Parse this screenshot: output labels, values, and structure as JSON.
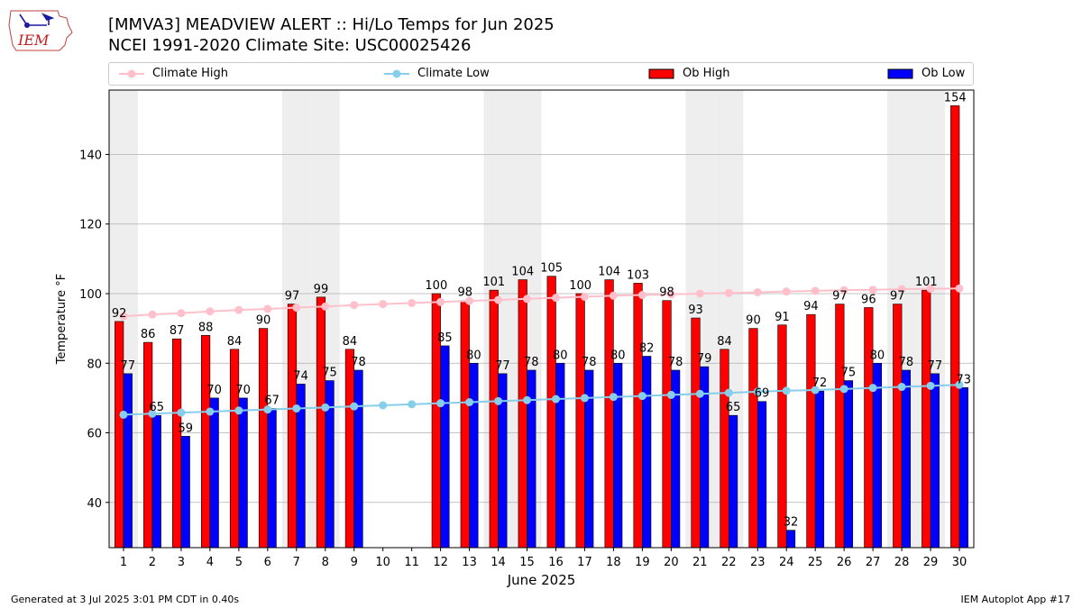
{
  "title_line1": "[MMVA3] MEADVIEW ALERT :: Hi/Lo Temps for Jun 2025",
  "title_line2": "NCEI 1991-2020 Climate Site: USC00025426",
  "logo_text": "IEM",
  "footer_left": "Generated at 3 Jul 2025 3:01 PM CDT in 0.40s",
  "footer_right": "IEM Autoplot App #17",
  "colors": {
    "ob_high": "#ff0000",
    "ob_low": "#0000ff",
    "climate_high": "#ffc0cb",
    "climate_low": "#87ceeb",
    "weekend_shade": "#eeeeee",
    "grid": "#b0b0b0"
  },
  "legend": [
    {
      "label": "Climate High",
      "icon": "line-marker"
    },
    {
      "label": "Climate Low",
      "icon": "line-marker"
    },
    {
      "label": "Ob High",
      "icon": "bar-patch"
    },
    {
      "label": "Ob Low",
      "icon": "bar-patch"
    }
  ],
  "chart_data": {
    "type": "bar",
    "xlabel": "June 2025",
    "ylabel": "Temperature °F",
    "ylim": [
      27,
      158.5
    ],
    "yticks": [
      40,
      60,
      80,
      100,
      120,
      140
    ],
    "grid": "horizontal",
    "days": [
      1,
      2,
      3,
      4,
      5,
      6,
      7,
      8,
      9,
      10,
      11,
      12,
      13,
      14,
      15,
      16,
      17,
      18,
      19,
      20,
      21,
      22,
      23,
      24,
      25,
      26,
      27,
      28,
      29,
      30
    ],
    "shaded_days": [
      1,
      7,
      8,
      14,
      15,
      21,
      22,
      28,
      29
    ],
    "series": [
      {
        "name": "Ob High",
        "kind": "bar",
        "values": [
          92,
          86,
          87,
          88,
          84,
          90,
          97,
          99,
          84,
          null,
          null,
          100,
          98,
          101,
          104,
          105,
          100,
          104,
          103,
          98,
          93,
          84,
          90,
          91,
          94,
          97,
          96,
          97,
          101,
          154
        ]
      },
      {
        "name": "Ob Low",
        "kind": "bar",
        "values": [
          77,
          65,
          59,
          70,
          70,
          67,
          74,
          75,
          78,
          null,
          null,
          85,
          80,
          77,
          78,
          80,
          78,
          80,
          82,
          78,
          79,
          65,
          69,
          32,
          72,
          75,
          80,
          78,
          77,
          73
        ]
      },
      {
        "name": "Climate High",
        "kind": "line",
        "values": [
          93.5,
          94.0,
          94.4,
          94.9,
          95.3,
          95.6,
          96.0,
          96.3,
          96.7,
          97.0,
          97.3,
          97.6,
          97.9,
          98.2,
          98.5,
          98.8,
          99.1,
          99.4,
          99.6,
          99.8,
          100.0,
          100.2,
          100.4,
          100.6,
          100.8,
          101.0,
          101.1,
          101.3,
          101.4,
          101.5
        ]
      },
      {
        "name": "Climate Low",
        "kind": "line",
        "values": [
          65.2,
          65.5,
          65.8,
          66.1,
          66.4,
          66.7,
          67.0,
          67.3,
          67.6,
          67.9,
          68.2,
          68.5,
          68.8,
          69.1,
          69.4,
          69.7,
          70.0,
          70.3,
          70.6,
          70.9,
          71.2,
          71.5,
          71.8,
          72.1,
          72.3,
          72.6,
          72.9,
          73.2,
          73.5,
          73.8
        ]
      }
    ]
  }
}
